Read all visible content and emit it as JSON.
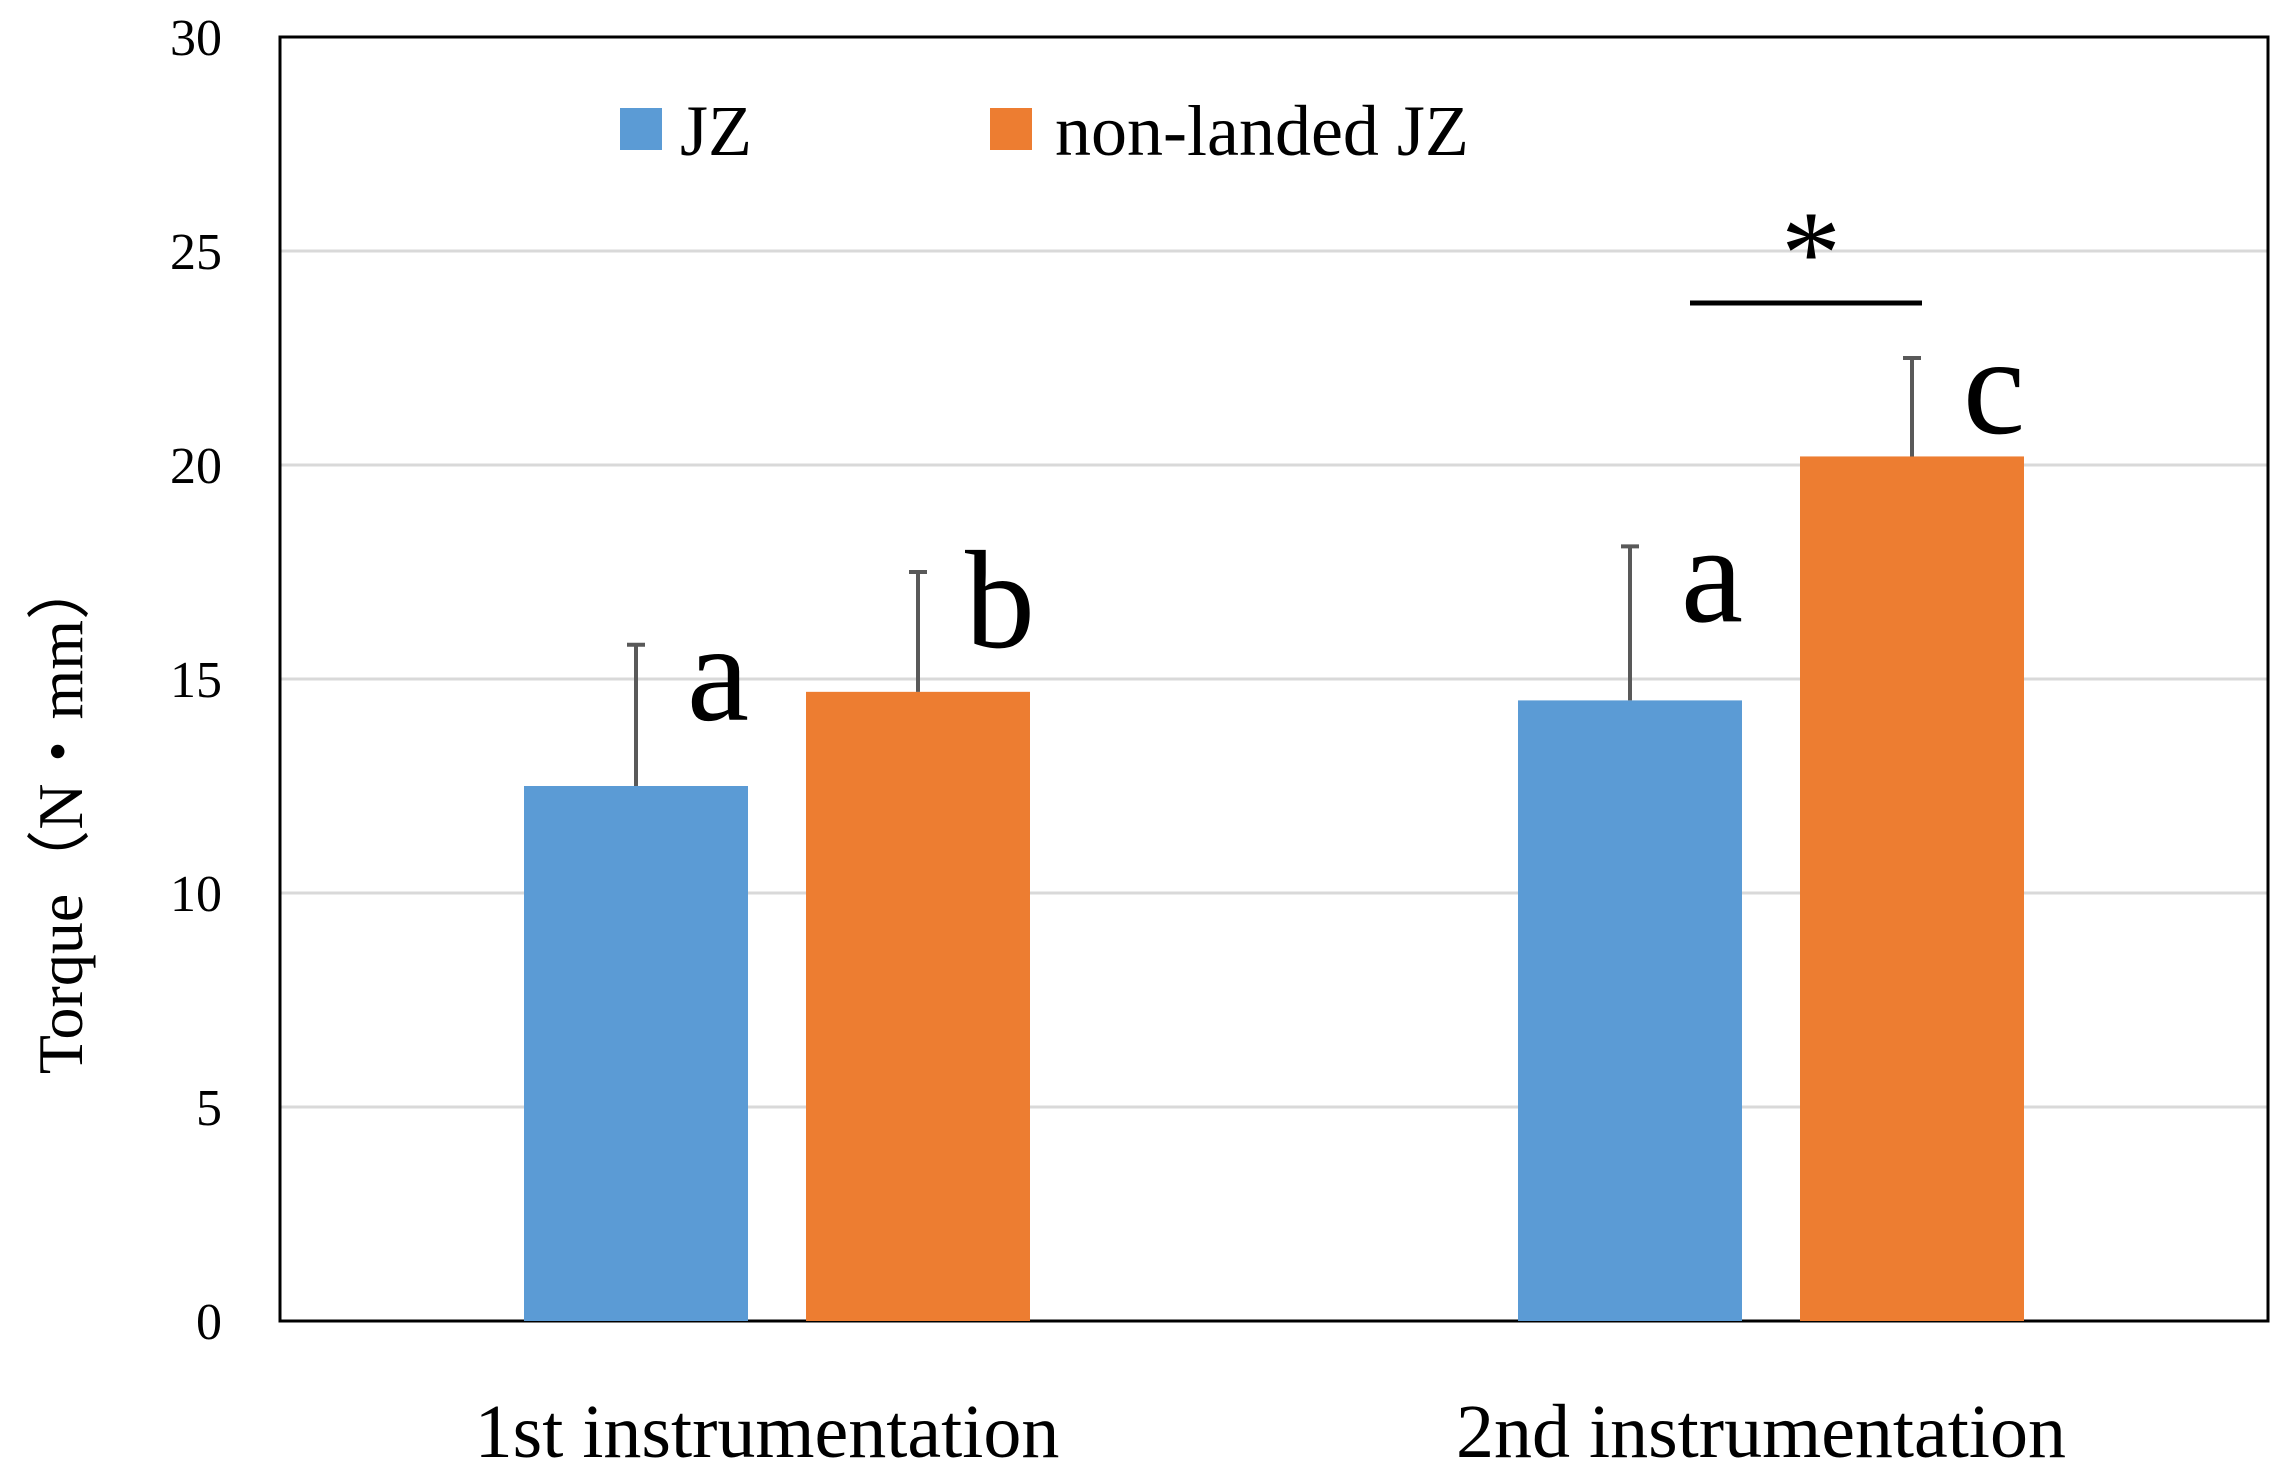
{
  "chart_data": {
    "type": "bar",
    "ylabel": "Torque（N・mm）",
    "ylim": [
      0,
      30
    ],
    "yticks": [
      "0",
      "5",
      "10",
      "15",
      "20",
      "25",
      "30"
    ],
    "grid": true,
    "legend_position": "top",
    "categories": [
      "1st instrumentation",
      "2nd instrumentation"
    ],
    "series": [
      {
        "name": "JZ",
        "color": "#5b9bd5",
        "values": [
          12.5,
          14.5
        ],
        "errors": [
          3.3,
          3.6
        ],
        "labels": [
          "a",
          "a"
        ]
      },
      {
        "name": "non-landed JZ",
        "color": "#ed7d31",
        "values": [
          14.7,
          20.2
        ],
        "errors": [
          2.8,
          2.3
        ],
        "labels": [
          "b",
          "c"
        ]
      }
    ],
    "significance": {
      "symbol": "*",
      "category_index": 1
    }
  }
}
